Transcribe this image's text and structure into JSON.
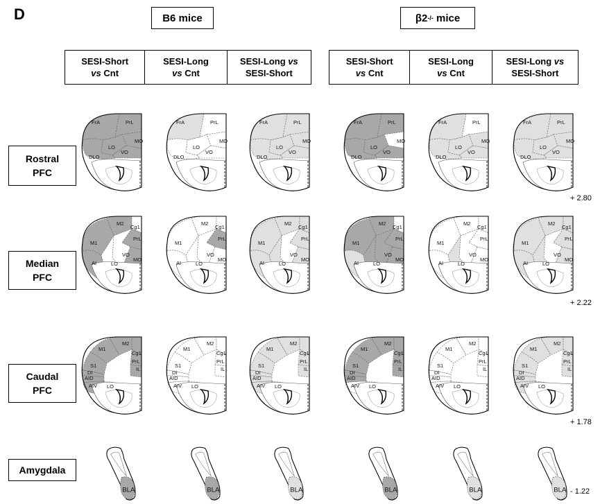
{
  "panel_letter": "D",
  "groups": [
    {
      "label": "B6 mice"
    },
    {
      "label_prefix": "β2",
      "label_sup": "-/-",
      "label_suffix": " mice"
    }
  ],
  "column_headers": [
    {
      "line1": "SESI-Short",
      "line2_italic": "vs",
      "line2": " Cnt"
    },
    {
      "line1": "SESI-Long",
      "line2_italic": "vs",
      "line2": " Cnt"
    },
    {
      "line1_pre": "SESI-Long ",
      "line1_italic": "vs",
      "line2": "SESI-Short"
    }
  ],
  "rows": [
    {
      "line1": "Rostral",
      "line2": "PFC",
      "coord": "+ 2.80"
    },
    {
      "line1": "Median",
      "line2": "PFC",
      "coord": "+ 2.22"
    },
    {
      "line1": "Caudal",
      "line2": "PFC",
      "coord": "+ 1.78"
    },
    {
      "line1": "Amygdala",
      "line2": "",
      "coord": "-  1.22"
    }
  ],
  "region_labels": {
    "rostral": [
      "FrA",
      "PrL",
      "LO",
      "MO",
      "VO",
      "DLO"
    ],
    "median": [
      "M2",
      "Cg1",
      "M1",
      "PrL",
      "AI",
      "VO",
      "LO",
      "MO"
    ],
    "caudal": [
      "M2",
      "M1",
      "Cg1",
      "S1",
      "PrL",
      "DI",
      "IL",
      "AID",
      "AIV",
      "LO"
    ],
    "amygdala": [
      "BLA"
    ]
  },
  "shading_colors": {
    "dark": "#a8a8a8",
    "light": "#e0e0e0",
    "none": "#ffffff"
  },
  "shading": {
    "rostral": [
      {
        "FrA": "dark",
        "PrL": "dark",
        "LO": "dark",
        "MO": "dark",
        "VO": "dark",
        "DLO": "dark"
      },
      {
        "FrA": "light",
        "PrL": "none",
        "LO": "none",
        "MO": "none",
        "VO": "none",
        "DLO": "none"
      },
      {
        "FrA": "light",
        "PrL": "light",
        "LO": "light",
        "MO": "light",
        "VO": "light",
        "DLO": "light"
      },
      {
        "FrA": "dark",
        "PrL": "dark",
        "LO": "dark",
        "MO": "none",
        "VO": "dark",
        "DLO": "dark"
      },
      {
        "FrA": "light",
        "PrL": "none",
        "LO": "light",
        "MO": "light",
        "VO": "light",
        "DLO": "light"
      },
      {
        "FrA": "light",
        "PrL": "light",
        "LO": "light",
        "MO": "light",
        "VO": "light",
        "DLO": "light"
      }
    ],
    "median": [
      {
        "M2": "dark",
        "Cg1": "none",
        "M1": "dark",
        "PrL": "dark",
        "AI": "dark",
        "VO": "none",
        "LO": "none",
        "MO": "dark"
      },
      {
        "M2": "none",
        "Cg1": "none",
        "M1": "none",
        "PrL": "dark",
        "AI": "none",
        "VO": "none",
        "LO": "none",
        "MO": "none"
      },
      {
        "M2": "light",
        "Cg1": "light",
        "M1": "light",
        "PrL": "light",
        "AI": "light",
        "VO": "none",
        "LO": "light",
        "MO": "light"
      },
      {
        "M2": "dark",
        "Cg1": "none",
        "M1": "dark",
        "PrL": "dark",
        "AI": "light",
        "VO": "dark",
        "LO": "dark",
        "MO": "dark"
      },
      {
        "M2": "none",
        "Cg1": "none",
        "M1": "none",
        "PrL": "none",
        "AI": "none",
        "VO": "none",
        "LO": "light",
        "MO": "none"
      },
      {
        "M2": "light",
        "Cg1": "light",
        "M1": "light",
        "PrL": "light",
        "AI": "light",
        "VO": "none",
        "LO": "light",
        "MO": "light"
      }
    ],
    "caudal": [
      {
        "M2": "dark",
        "M1": "dark",
        "Cg1": "dark",
        "S1": "dark",
        "PrL": "dark",
        "DI": "dark",
        "IL": "dark",
        "AID": "dark",
        "AIV": "dark",
        "LO": "none"
      },
      {
        "M2": "none",
        "M1": "none",
        "Cg1": "none",
        "S1": "none",
        "PrL": "none",
        "DI": "none",
        "IL": "none",
        "AID": "none",
        "AIV": "none",
        "LO": "none"
      },
      {
        "M2": "light",
        "M1": "light",
        "Cg1": "light",
        "S1": "light",
        "PrL": "light",
        "DI": "light",
        "IL": "light",
        "AID": "light",
        "AIV": "light",
        "LO": "light"
      },
      {
        "M2": "dark",
        "M1": "dark",
        "Cg1": "dark",
        "S1": "dark",
        "PrL": "dark",
        "DI": "dark",
        "IL": "dark",
        "AID": "dark",
        "AIV": "none",
        "LO": "none"
      },
      {
        "M2": "none",
        "M1": "none",
        "Cg1": "none",
        "S1": "none",
        "PrL": "none",
        "DI": "none",
        "IL": "none",
        "AID": "none",
        "AIV": "none",
        "LO": "none"
      },
      {
        "M2": "light",
        "M1": "light",
        "Cg1": "light",
        "S1": "light",
        "PrL": "light",
        "DI": "light",
        "IL": "light",
        "AID": "light",
        "AIV": "light",
        "LO": "light"
      }
    ],
    "amygdala": [
      {
        "BLA": "dark"
      },
      {
        "BLA": "dark"
      },
      {
        "BLA": "light"
      },
      {
        "BLA": "dark"
      },
      {
        "BLA": "light"
      },
      {
        "BLA": "light"
      }
    ]
  }
}
